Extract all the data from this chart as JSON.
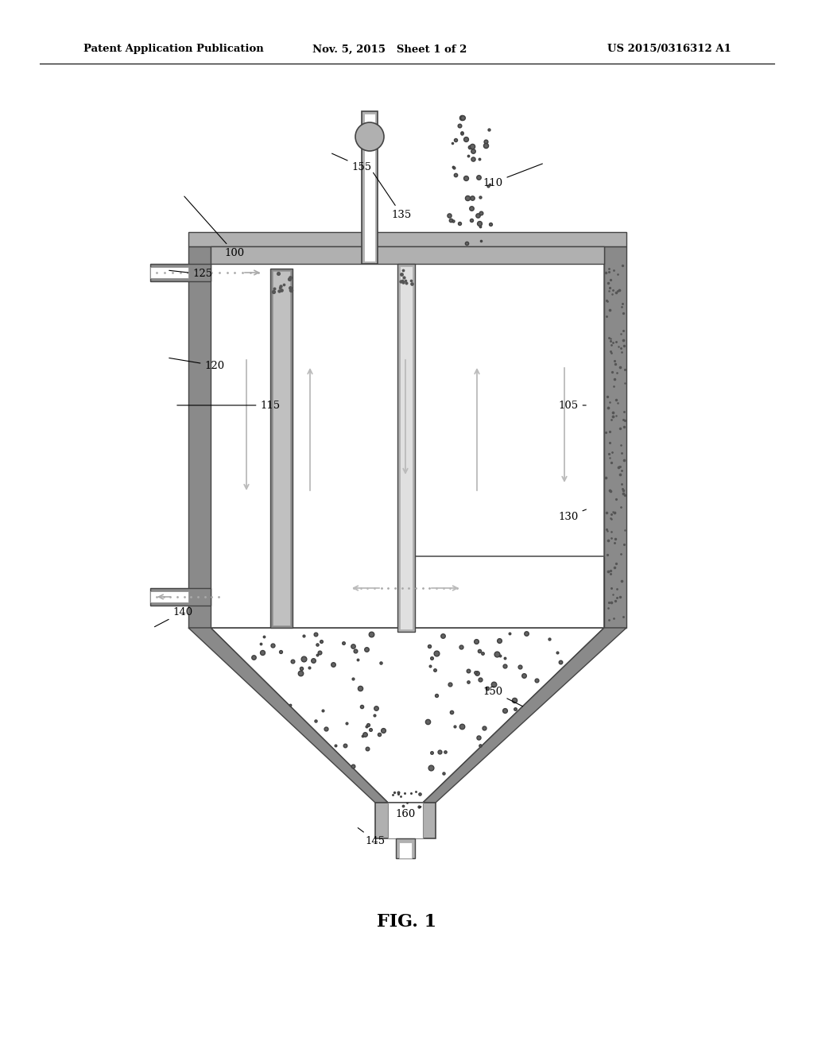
{
  "bg_color": "#ffffff",
  "header_left": "Patent Application Publication",
  "header_mid": "Nov. 5, 2015   Sheet 1 of 2",
  "header_right": "US 2015/0316312 A1",
  "figure_label": "FIG. 1",
  "c_wall": "#b0b0b0",
  "c_wall_dark": "#888888",
  "c_wall_edge": "#444444",
  "c_inner": "#ffffff",
  "c_particles": "#606060",
  "c_arrow": "#aaaaaa",
  "c_dotted": "#aaaaaa"
}
